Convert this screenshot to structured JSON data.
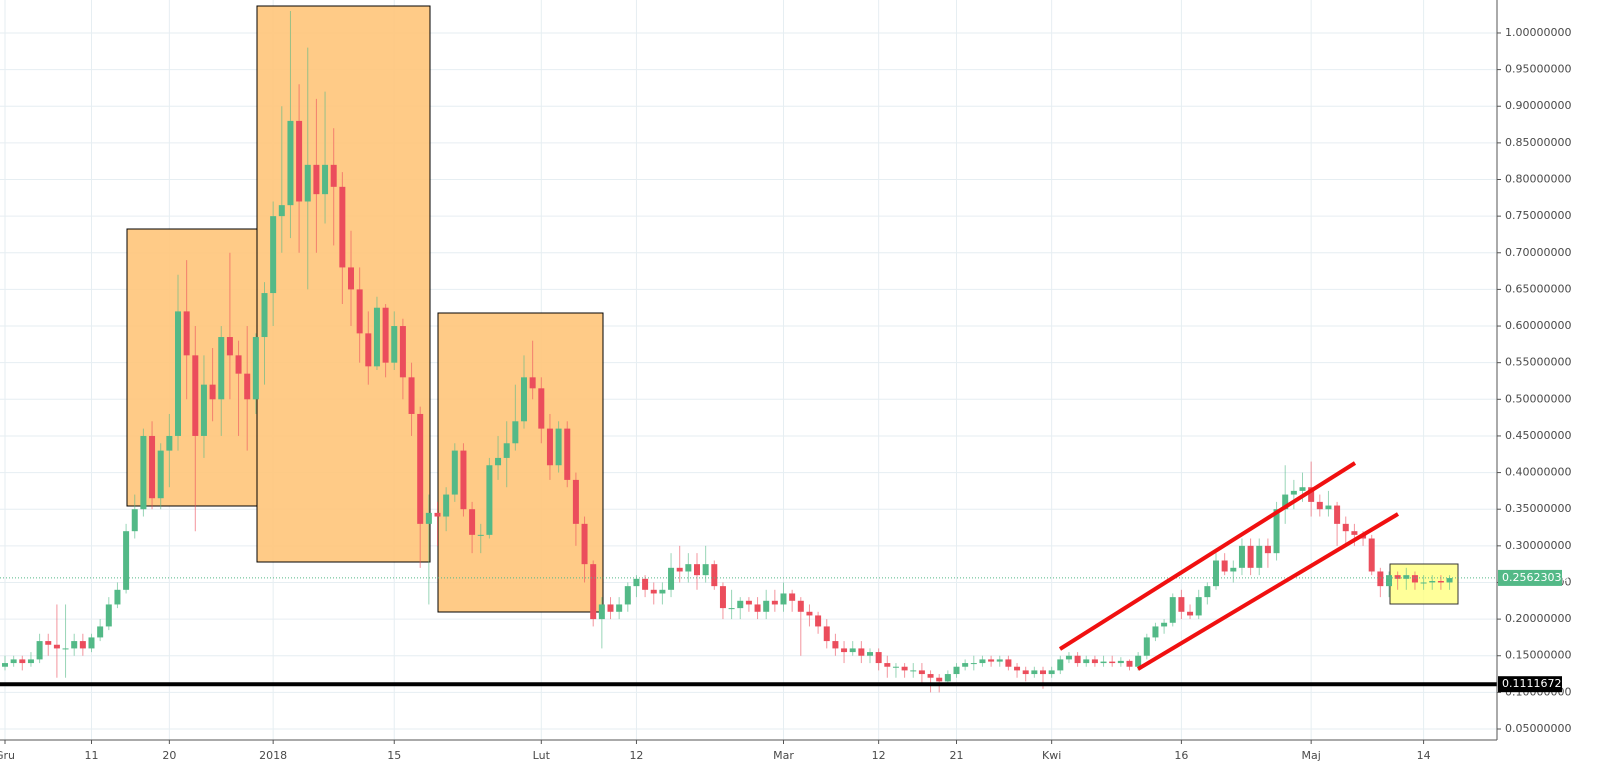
{
  "chart_data": {
    "type": "candlestick",
    "up_color": "#53b987",
    "down_color": "#eb4d5c",
    "grid": true,
    "ylim": [
      0.035,
      1.045
    ],
    "yticks": [
      {
        "value": 0.05,
        "label": "0.05000000"
      },
      {
        "value": 0.1,
        "label": "0.10000000"
      },
      {
        "value": 0.15,
        "label": "0.15000000"
      },
      {
        "value": 0.2,
        "label": "0.20000000"
      },
      {
        "value": 0.25,
        "label": "0.25000000"
      },
      {
        "value": 0.3,
        "label": "0.30000000"
      },
      {
        "value": 0.35,
        "label": "0.35000000"
      },
      {
        "value": 0.4,
        "label": "0.40000000"
      },
      {
        "value": 0.45,
        "label": "0.45000000"
      },
      {
        "value": 0.5,
        "label": "0.50000000"
      },
      {
        "value": 0.55,
        "label": "0.55000000"
      },
      {
        "value": 0.6,
        "label": "0.60000000"
      },
      {
        "value": 0.65,
        "label": "0.65000000"
      },
      {
        "value": 0.7,
        "label": "0.70000000"
      },
      {
        "value": 0.75,
        "label": "0.75000000"
      },
      {
        "value": 0.8,
        "label": "0.80000000"
      },
      {
        "value": 0.85,
        "label": "0.85000000"
      },
      {
        "value": 0.9,
        "label": "0.90000000"
      },
      {
        "value": 0.95,
        "label": "0.95000000"
      },
      {
        "value": 1.0,
        "label": "1.00000000"
      }
    ],
    "price_lines": [
      {
        "value": 0.2562303,
        "label": "0.25623030",
        "color": "#53b987"
      },
      {
        "value": 0.11116723,
        "label": "0.11116723",
        "color": "#000000"
      }
    ],
    "categories": [
      "Gru",
      null,
      null,
      null,
      null,
      null,
      null,
      null,
      null,
      null,
      "11",
      null,
      null,
      null,
      null,
      null,
      null,
      null,
      null,
      "20",
      null,
      null,
      null,
      null,
      null,
      null,
      null,
      null,
      null,
      null,
      null,
      "2018",
      null,
      null,
      null,
      null,
      null,
      null,
      null,
      null,
      null,
      null,
      null,
      null,
      null,
      "15",
      null,
      null,
      null,
      null,
      null,
      null,
      null,
      null,
      null,
      null,
      null,
      null,
      null,
      null,
      null,
      null,
      "Lut",
      null,
      null,
      null,
      null,
      null,
      null,
      null,
      null,
      null,
      null,
      "12",
      null,
      null,
      null,
      null,
      null,
      null,
      null,
      null,
      null,
      null,
      null,
      null,
      null,
      null,
      null,
      null,
      "Mar",
      null,
      null,
      null,
      null,
      null,
      null,
      null,
      null,
      null,
      null,
      "12",
      null,
      null,
      null,
      null,
      null,
      null,
      null,
      null,
      "21",
      null,
      null,
      null,
      null,
      null,
      null,
      null,
      null,
      null,
      null,
      "Kwi",
      null,
      null,
      null,
      null,
      null,
      null,
      null,
      null,
      null,
      null,
      null,
      null,
      null,
      null,
      "16",
      null,
      null,
      null,
      null,
      null,
      null,
      null,
      null,
      null,
      null,
      null,
      null,
      null,
      null,
      "Maj",
      null,
      null,
      null,
      null,
      null,
      null,
      null,
      null,
      null,
      null,
      null,
      null,
      "14",
      null,
      null,
      null
    ],
    "ohlc": [
      [
        0.135,
        0.15,
        0.13,
        0.14
      ],
      [
        0.14,
        0.15,
        0.135,
        0.145
      ],
      [
        0.145,
        0.15,
        0.13,
        0.14
      ],
      [
        0.14,
        0.155,
        0.135,
        0.145
      ],
      [
        0.145,
        0.18,
        0.14,
        0.17
      ],
      [
        0.17,
        0.18,
        0.15,
        0.165
      ],
      [
        0.165,
        0.22,
        0.12,
        0.16
      ],
      [
        0.16,
        0.22,
        0.12,
        0.16
      ],
      [
        0.16,
        0.18,
        0.15,
        0.17
      ],
      [
        0.17,
        0.18,
        0.15,
        0.16
      ],
      [
        0.16,
        0.18,
        0.155,
        0.175
      ],
      [
        0.175,
        0.2,
        0.17,
        0.19
      ],
      [
        0.19,
        0.23,
        0.185,
        0.22
      ],
      [
        0.22,
        0.25,
        0.215,
        0.24
      ],
      [
        0.24,
        0.33,
        0.235,
        0.32
      ],
      [
        0.32,
        0.37,
        0.31,
        0.35
      ],
      [
        0.35,
        0.46,
        0.34,
        0.45
      ],
      [
        0.45,
        0.47,
        0.35,
        0.365
      ],
      [
        0.365,
        0.44,
        0.35,
        0.43
      ],
      [
        0.43,
        0.48,
        0.38,
        0.45
      ],
      [
        0.45,
        0.67,
        0.43,
        0.62
      ],
      [
        0.62,
        0.69,
        0.5,
        0.56
      ],
      [
        0.56,
        0.6,
        0.32,
        0.45
      ],
      [
        0.45,
        0.56,
        0.42,
        0.52
      ],
      [
        0.52,
        0.57,
        0.47,
        0.5
      ],
      [
        0.5,
        0.6,
        0.45,
        0.585
      ],
      [
        0.585,
        0.7,
        0.5,
        0.56
      ],
      [
        0.56,
        0.58,
        0.45,
        0.535
      ],
      [
        0.535,
        0.6,
        0.43,
        0.5
      ],
      [
        0.5,
        0.59,
        0.48,
        0.585
      ],
      [
        0.585,
        0.66,
        0.52,
        0.645
      ],
      [
        0.645,
        0.77,
        0.6,
        0.75
      ],
      [
        0.75,
        0.9,
        0.7,
        0.765
      ],
      [
        0.765,
        1.03,
        0.72,
        0.88
      ],
      [
        0.88,
        0.93,
        0.7,
        0.77
      ],
      [
        0.77,
        0.98,
        0.65,
        0.82
      ],
      [
        0.82,
        0.91,
        0.7,
        0.78
      ],
      [
        0.78,
        0.92,
        0.74,
        0.82
      ],
      [
        0.82,
        0.87,
        0.71,
        0.79
      ],
      [
        0.79,
        0.81,
        0.63,
        0.68
      ],
      [
        0.68,
        0.73,
        0.6,
        0.65
      ],
      [
        0.65,
        0.68,
        0.55,
        0.59
      ],
      [
        0.59,
        0.62,
        0.52,
        0.545
      ],
      [
        0.545,
        0.64,
        0.54,
        0.625
      ],
      [
        0.625,
        0.63,
        0.53,
        0.55
      ],
      [
        0.55,
        0.62,
        0.54,
        0.6
      ],
      [
        0.6,
        0.61,
        0.5,
        0.53
      ],
      [
        0.53,
        0.55,
        0.45,
        0.48
      ],
      [
        0.48,
        0.49,
        0.27,
        0.33
      ],
      [
        0.33,
        0.37,
        0.22,
        0.345
      ],
      [
        0.345,
        0.36,
        0.3,
        0.34
      ],
      [
        0.34,
        0.38,
        0.32,
        0.37
      ],
      [
        0.37,
        0.44,
        0.36,
        0.43
      ],
      [
        0.43,
        0.44,
        0.34,
        0.35
      ],
      [
        0.35,
        0.36,
        0.29,
        0.315
      ],
      [
        0.315,
        0.33,
        0.29,
        0.315
      ],
      [
        0.315,
        0.42,
        0.31,
        0.41
      ],
      [
        0.41,
        0.45,
        0.39,
        0.42
      ],
      [
        0.42,
        0.47,
        0.38,
        0.44
      ],
      [
        0.44,
        0.52,
        0.43,
        0.47
      ],
      [
        0.47,
        0.56,
        0.46,
        0.53
      ],
      [
        0.53,
        0.58,
        0.5,
        0.515
      ],
      [
        0.515,
        0.53,
        0.44,
        0.46
      ],
      [
        0.46,
        0.48,
        0.39,
        0.41
      ],
      [
        0.41,
        0.47,
        0.4,
        0.46
      ],
      [
        0.46,
        0.47,
        0.38,
        0.39
      ],
      [
        0.39,
        0.4,
        0.3,
        0.33
      ],
      [
        0.33,
        0.34,
        0.25,
        0.275
      ],
      [
        0.275,
        0.28,
        0.19,
        0.2
      ],
      [
        0.2,
        0.23,
        0.16,
        0.22
      ],
      [
        0.22,
        0.23,
        0.2,
        0.21
      ],
      [
        0.21,
        0.23,
        0.2,
        0.22
      ],
      [
        0.22,
        0.25,
        0.21,
        0.245
      ],
      [
        0.245,
        0.26,
        0.23,
        0.255
      ],
      [
        0.255,
        0.26,
        0.23,
        0.24
      ],
      [
        0.24,
        0.25,
        0.22,
        0.235
      ],
      [
        0.235,
        0.25,
        0.22,
        0.24
      ],
      [
        0.24,
        0.29,
        0.23,
        0.27
      ],
      [
        0.27,
        0.3,
        0.25,
        0.265
      ],
      [
        0.265,
        0.29,
        0.25,
        0.275
      ],
      [
        0.275,
        0.29,
        0.24,
        0.26
      ],
      [
        0.26,
        0.3,
        0.25,
        0.275
      ],
      [
        0.275,
        0.28,
        0.24,
        0.245
      ],
      [
        0.245,
        0.25,
        0.2,
        0.215
      ],
      [
        0.215,
        0.24,
        0.2,
        0.215
      ],
      [
        0.215,
        0.23,
        0.2,
        0.225
      ],
      [
        0.225,
        0.23,
        0.21,
        0.22
      ],
      [
        0.22,
        0.23,
        0.2,
        0.21
      ],
      [
        0.21,
        0.24,
        0.2,
        0.225
      ],
      [
        0.225,
        0.24,
        0.21,
        0.22
      ],
      [
        0.22,
        0.25,
        0.21,
        0.235
      ],
      [
        0.235,
        0.24,
        0.21,
        0.225
      ],
      [
        0.225,
        0.23,
        0.15,
        0.21
      ],
      [
        0.21,
        0.22,
        0.19,
        0.205
      ],
      [
        0.205,
        0.21,
        0.18,
        0.19
      ],
      [
        0.19,
        0.2,
        0.16,
        0.17
      ],
      [
        0.17,
        0.18,
        0.15,
        0.16
      ],
      [
        0.16,
        0.17,
        0.14,
        0.155
      ],
      [
        0.155,
        0.17,
        0.15,
        0.16
      ],
      [
        0.16,
        0.17,
        0.14,
        0.15
      ],
      [
        0.15,
        0.16,
        0.14,
        0.155
      ],
      [
        0.155,
        0.16,
        0.13,
        0.14
      ],
      [
        0.14,
        0.15,
        0.12,
        0.135
      ],
      [
        0.135,
        0.14,
        0.12,
        0.135
      ],
      [
        0.135,
        0.14,
        0.12,
        0.13
      ],
      [
        0.13,
        0.14,
        0.12,
        0.13
      ],
      [
        0.13,
        0.14,
        0.11,
        0.125
      ],
      [
        0.125,
        0.13,
        0.1,
        0.12
      ],
      [
        0.12,
        0.125,
        0.1,
        0.115
      ],
      [
        0.115,
        0.13,
        0.11,
        0.125
      ],
      [
        0.125,
        0.14,
        0.12,
        0.135
      ],
      [
        0.135,
        0.145,
        0.13,
        0.14
      ],
      [
        0.14,
        0.15,
        0.13,
        0.14
      ],
      [
        0.14,
        0.15,
        0.135,
        0.145
      ],
      [
        0.145,
        0.15,
        0.135,
        0.142
      ],
      [
        0.142,
        0.15,
        0.135,
        0.145
      ],
      [
        0.145,
        0.15,
        0.13,
        0.135
      ],
      [
        0.135,
        0.14,
        0.12,
        0.13
      ],
      [
        0.13,
        0.135,
        0.115,
        0.125
      ],
      [
        0.125,
        0.135,
        0.12,
        0.13
      ],
      [
        0.13,
        0.135,
        0.105,
        0.125
      ],
      [
        0.125,
        0.135,
        0.12,
        0.13
      ],
      [
        0.13,
        0.15,
        0.125,
        0.145
      ],
      [
        0.145,
        0.155,
        0.14,
        0.15
      ],
      [
        0.15,
        0.155,
        0.135,
        0.14
      ],
      [
        0.14,
        0.15,
        0.135,
        0.145
      ],
      [
        0.145,
        0.15,
        0.135,
        0.14
      ],
      [
        0.14,
        0.15,
        0.135,
        0.142
      ],
      [
        0.142,
        0.15,
        0.135,
        0.14
      ],
      [
        0.14,
        0.148,
        0.135,
        0.143
      ],
      [
        0.143,
        0.145,
        0.13,
        0.135
      ],
      [
        0.135,
        0.155,
        0.13,
        0.15
      ],
      [
        0.15,
        0.18,
        0.145,
        0.175
      ],
      [
        0.175,
        0.195,
        0.17,
        0.19
      ],
      [
        0.19,
        0.2,
        0.18,
        0.195
      ],
      [
        0.195,
        0.235,
        0.19,
        0.23
      ],
      [
        0.23,
        0.24,
        0.2,
        0.21
      ],
      [
        0.21,
        0.22,
        0.2,
        0.205
      ],
      [
        0.205,
        0.24,
        0.2,
        0.23
      ],
      [
        0.23,
        0.25,
        0.22,
        0.245
      ],
      [
        0.245,
        0.29,
        0.24,
        0.28
      ],
      [
        0.28,
        0.29,
        0.26,
        0.265
      ],
      [
        0.265,
        0.28,
        0.25,
        0.27
      ],
      [
        0.27,
        0.31,
        0.26,
        0.3
      ],
      [
        0.3,
        0.31,
        0.26,
        0.27
      ],
      [
        0.27,
        0.31,
        0.26,
        0.3
      ],
      [
        0.3,
        0.31,
        0.27,
        0.29
      ],
      [
        0.29,
        0.36,
        0.28,
        0.35
      ],
      [
        0.35,
        0.41,
        0.33,
        0.37
      ],
      [
        0.37,
        0.39,
        0.35,
        0.375
      ],
      [
        0.375,
        0.4,
        0.36,
        0.38
      ],
      [
        0.38,
        0.415,
        0.34,
        0.36
      ],
      [
        0.36,
        0.37,
        0.34,
        0.35
      ],
      [
        0.35,
        0.375,
        0.34,
        0.355
      ],
      [
        0.355,
        0.36,
        0.3,
        0.33
      ],
      [
        0.33,
        0.34,
        0.3,
        0.32
      ],
      [
        0.32,
        0.33,
        0.3,
        0.315
      ],
      [
        0.315,
        0.32,
        0.3,
        0.31
      ],
      [
        0.31,
        0.315,
        0.26,
        0.265
      ],
      [
        0.265,
        0.27,
        0.23,
        0.245
      ],
      [
        0.245,
        0.265,
        0.23,
        0.26
      ],
      [
        0.26,
        0.265,
        0.24,
        0.255
      ],
      [
        0.255,
        0.27,
        0.24,
        0.26
      ],
      [
        0.26,
        0.265,
        0.24,
        0.25
      ],
      [
        0.25,
        0.26,
        0.24,
        0.25
      ],
      [
        0.25,
        0.26,
        0.24,
        0.252
      ],
      [
        0.252,
        0.26,
        0.24,
        0.25
      ],
      [
        0.25,
        0.26,
        0.24,
        0.256
      ]
    ]
  }
}
